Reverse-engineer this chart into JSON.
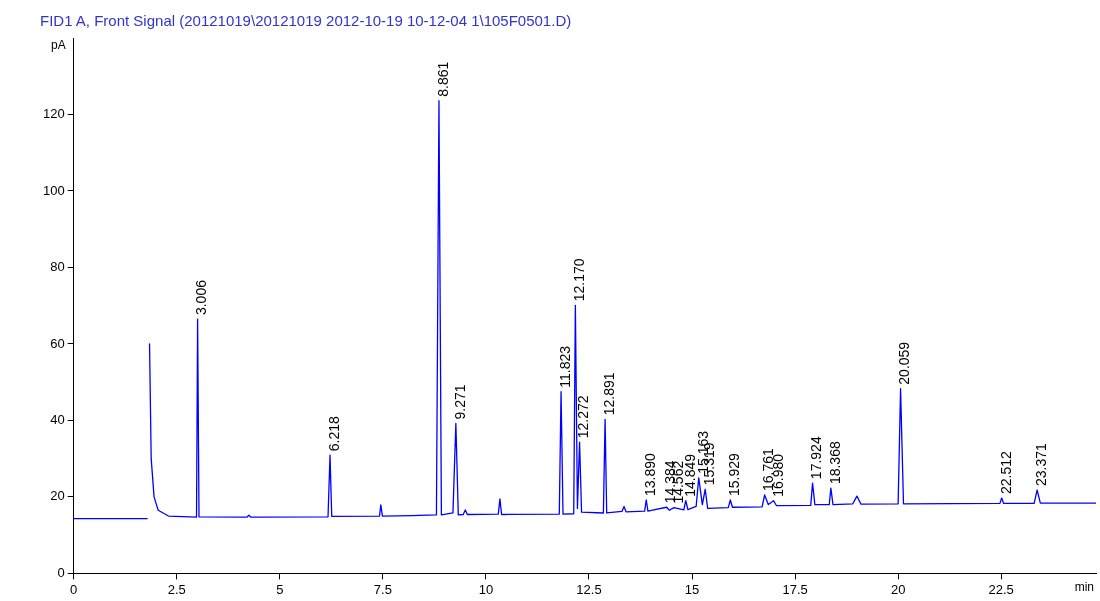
{
  "chart_data": {
    "type": "line",
    "title": "FID1 A, Front Signal (20121019\\20121019 2012-10-19 10-12-04 1\\105F0501.D)",
    "xlabel": "min",
    "ylabel": "pA",
    "xlim": [
      0,
      24.8
    ],
    "xticks": [
      0,
      2.5,
      5,
      7.5,
      10,
      12.5,
      15,
      17.5,
      20,
      22.5
    ],
    "ylim": [
      0,
      140
    ],
    "yticks": [
      0,
      20,
      40,
      60,
      80,
      100,
      120
    ],
    "grid": false,
    "legend": false,
    "marker": "none",
    "line_style": "solid",
    "series": [
      {
        "color": "#0000ff",
        "x": [
          0,
          1.78,
          1.79,
          1.82,
          1.84,
          1.88,
          1.95,
          2.05,
          2.3,
          2.98,
          3.006,
          3.04,
          4.2,
          4.25,
          4.3,
          6.17,
          6.218,
          6.26,
          7.42,
          7.45,
          7.49,
          8.2,
          8.8,
          8.861,
          8.92,
          9.2,
          9.271,
          9.33,
          9.45,
          9.5,
          9.55,
          10.3,
          10.34,
          10.38,
          11.78,
          11.823,
          11.87,
          12.13,
          12.17,
          12.22,
          12.272,
          12.32,
          12.85,
          12.891,
          12.93,
          13.3,
          13.35,
          13.4,
          13.85,
          13.89,
          13.93,
          14.384,
          14.45,
          14.562,
          14.8,
          14.849,
          14.9,
          15.1,
          15.163,
          15.25,
          15.319,
          15.38,
          15.88,
          15.929,
          15.98,
          16.7,
          16.761,
          16.85,
          16.98,
          17.05,
          17.88,
          17.924,
          17.98,
          18.33,
          18.368,
          18.42,
          18.9,
          19.0,
          19.1,
          20.0,
          20.059,
          20.13,
          22.47,
          22.512,
          22.56,
          23.3,
          23.371,
          23.45,
          24.8
        ],
        "values": [
          14.3,
          14.3,
          null,
          null,
          60,
          30,
          20,
          16.5,
          15,
          14.7,
          66.5,
          14.8,
          14.7,
          15.2,
          14.7,
          14.8,
          30.9,
          14.9,
          15,
          17.9,
          15,
          15.1,
          15.3,
          123.6,
          15.3,
          15.8,
          39.2,
          15.3,
          15.4,
          16.6,
          15.4,
          15.5,
          19.5,
          15.4,
          15.5,
          47.5,
          15.5,
          15.6,
          70.1,
          17,
          34.3,
          16,
          15.8,
          40.3,
          15.8,
          16.2,
          17.5,
          16.1,
          16.3,
          19.2,
          16.3,
          17.3,
          16.5,
          17.2,
          16.6,
          19,
          16.7,
          17.5,
          25,
          18,
          22,
          17,
          17.2,
          19.2,
          17.3,
          17.4,
          20.5,
          18,
          19,
          17.7,
          17.8,
          23.6,
          18,
          18,
          22.3,
          18,
          18.2,
          20.2,
          18.1,
          18.2,
          48.3,
          18.2,
          18.3,
          19.7,
          18.3,
          18.3,
          21.8,
          18.4,
          18.4
        ]
      }
    ],
    "annotations": [
      {
        "text": "3.006",
        "x": 3.006,
        "y": 66.5
      },
      {
        "text": "6.218",
        "x": 6.218,
        "y": 30.9
      },
      {
        "text": "8.861",
        "x": 8.861,
        "y": 123.6
      },
      {
        "text": "9.271",
        "x": 9.271,
        "y": 39.2
      },
      {
        "text": "11.823",
        "x": 11.823,
        "y": 47.5
      },
      {
        "text": "12.170",
        "x": 12.17,
        "y": 70.1
      },
      {
        "text": "12.272",
        "x": 12.272,
        "y": 34.3
      },
      {
        "text": "12.891",
        "x": 12.891,
        "y": 40.3
      },
      {
        "text": "13.890",
        "x": 13.89,
        "y": 19.2
      },
      {
        "text": "14.384",
        "x": 14.384,
        "y": 17.3
      },
      {
        "text": "14.562",
        "x": 14.562,
        "y": 17.2
      },
      {
        "text": "14.849",
        "x": 14.849,
        "y": 19
      },
      {
        "text": "15.163",
        "x": 15.163,
        "y": 25
      },
      {
        "text": "15.319",
        "x": 15.319,
        "y": 22
      },
      {
        "text": "15.929",
        "x": 15.929,
        "y": 19.2
      },
      {
        "text": "16.761",
        "x": 16.761,
        "y": 20.5
      },
      {
        "text": "16.980",
        "x": 16.98,
        "y": 19
      },
      {
        "text": "17.924",
        "x": 17.924,
        "y": 23.6
      },
      {
        "text": "18.368",
        "x": 18.368,
        "y": 22.3
      },
      {
        "text": "20.059",
        "x": 20.059,
        "y": 48.3
      },
      {
        "text": "22.512",
        "x": 22.512,
        "y": 19.7
      },
      {
        "text": "23.371",
        "x": 23.371,
        "y": 21.8
      }
    ]
  }
}
